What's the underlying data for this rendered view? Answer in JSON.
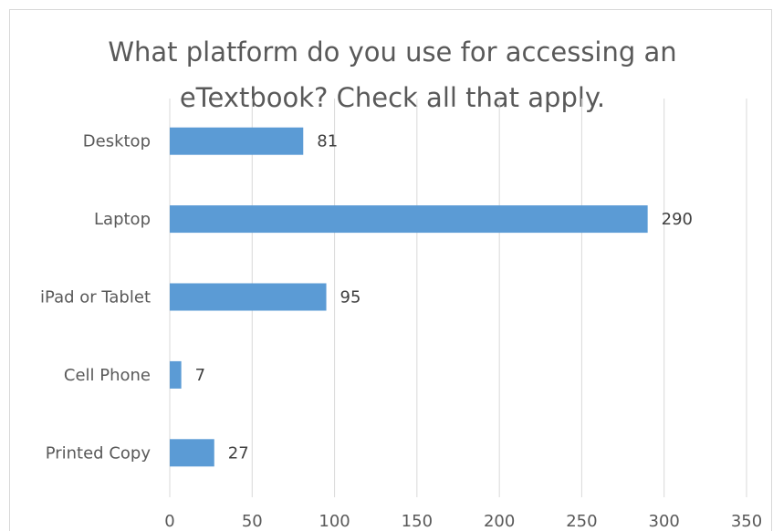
{
  "chart_data": {
    "type": "bar",
    "orientation": "horizontal",
    "title": "What platform do you use for accessing an\neTextbook? Check all that apply.",
    "categories": [
      "Desktop",
      "Laptop",
      "iPad or Tablet",
      "Cell Phone",
      "Printed Copy"
    ],
    "values": [
      81,
      290,
      95,
      7,
      27
    ],
    "xlim": [
      0,
      350
    ],
    "xticks": [
      0,
      50,
      100,
      150,
      200,
      250,
      300,
      350
    ],
    "grid": "vertical",
    "data_labels": true,
    "legend": "none",
    "bar_color": "#5b9bd5",
    "grid_color": "#d9d9d9",
    "text_color": "#595959"
  }
}
